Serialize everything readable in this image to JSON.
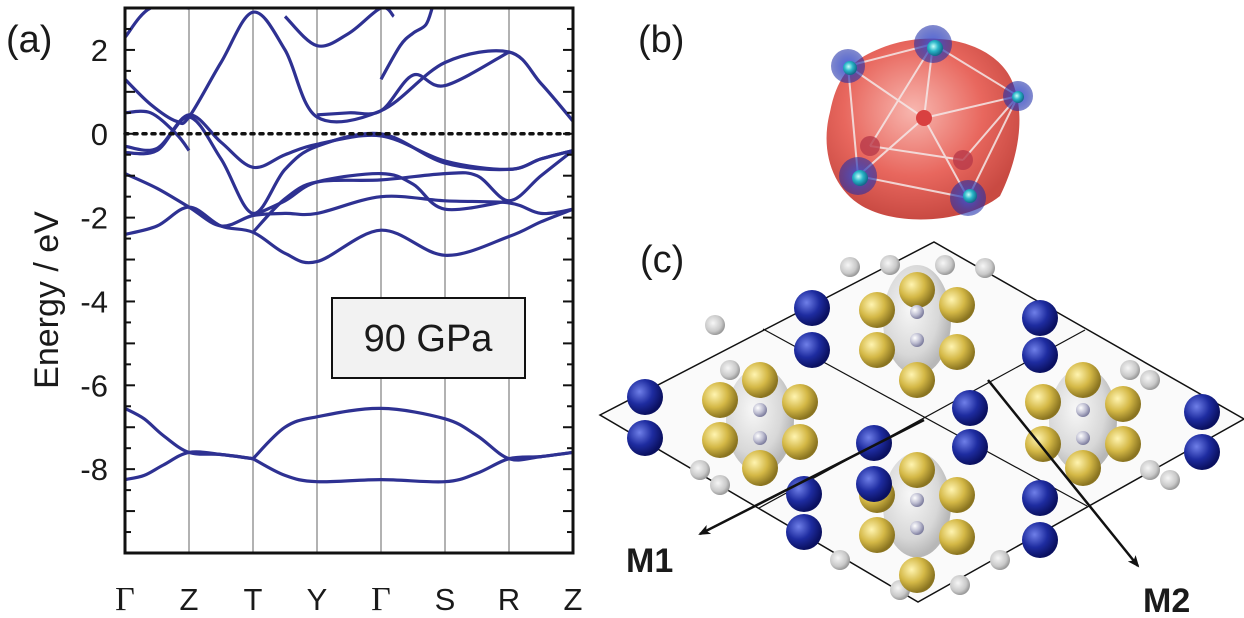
{
  "panels": {
    "a": "(a)",
    "b": "(b)",
    "c": "(c)"
  },
  "chart_data": {
    "type": "line",
    "title": "",
    "xlabel": "",
    "ylabel": "Energy / eV",
    "annotation": "90 GPa",
    "x_ticks": [
      "Γ",
      "Z",
      "T",
      "Y",
      "Γ",
      "S",
      "R",
      "Z"
    ],
    "x_range": [
      0,
      7
    ],
    "ylim": [
      -10,
      3
    ],
    "y_ticks": [
      2,
      0,
      -2,
      -4,
      -6,
      -8
    ],
    "fermi_level": 0,
    "grid_vertical": true,
    "color": "#2e3192",
    "bands": [
      {
        "x": [
          0,
          0.3,
          0.6,
          1,
          1.5,
          2
        ],
        "y": [
          -8.25,
          -8.15,
          -7.9,
          -7.6,
          -7.65,
          -7.75
        ]
      },
      {
        "x": [
          0,
          0.3,
          0.6,
          1,
          1.5,
          2
        ],
        "y": [
          -6.55,
          -6.8,
          -7.2,
          -7.6,
          -7.65,
          -7.75
        ]
      },
      {
        "x": [
          2,
          2.5,
          3,
          4,
          5,
          5.5,
          6,
          6.5,
          7
        ],
        "y": [
          -7.75,
          -7.0,
          -6.75,
          -6.55,
          -6.8,
          -7.2,
          -7.75,
          -7.7,
          -7.6
        ]
      },
      {
        "x": [
          2,
          2.5,
          3,
          4,
          5,
          5.5,
          6,
          6.5,
          7
        ],
        "y": [
          -7.75,
          -8.15,
          -8.3,
          -8.25,
          -8.3,
          -8.1,
          -7.75,
          -7.7,
          -7.6
        ]
      },
      {
        "x": [
          0,
          0.5,
          1,
          1.5,
          2,
          2.5,
          3,
          4,
          5,
          6,
          6.5,
          7
        ],
        "y": [
          -2.4,
          -2.2,
          -1.75,
          -2.2,
          -2.35,
          -2.85,
          -3.05,
          -2.3,
          -2.9,
          -2.45,
          -2.1,
          -1.8
        ]
      },
      {
        "x": [
          0,
          0.5,
          1,
          1.5,
          2,
          2.5,
          3,
          4,
          5,
          6,
          6.5,
          7
        ],
        "y": [
          -0.95,
          -1.3,
          -1.75,
          -2.2,
          -1.95,
          -1.9,
          -1.9,
          -1.5,
          -1.6,
          -1.65,
          -1.9,
          -1.8
        ]
      },
      {
        "x": [
          2,
          2.5,
          3,
          4,
          4.5,
          5,
          6
        ],
        "y": [
          -1.95,
          -1.6,
          -1.15,
          -0.95,
          -1.2,
          -1.8,
          -1.6
        ]
      },
      {
        "x": [
          2,
          2.5,
          3,
          4,
          5,
          5.5,
          6,
          6.5,
          7
        ],
        "y": [
          -2.35,
          -1.55,
          -1.15,
          -1.1,
          -0.95,
          -1.0,
          -1.6,
          -1.0,
          -0.4
        ]
      },
      {
        "x": [
          0,
          0.5,
          1,
          1.5,
          2,
          2.5,
          3,
          4,
          5,
          6,
          6.5,
          7
        ],
        "y": [
          -0.45,
          -0.4,
          0.4,
          -0.6,
          -1.9,
          -0.85,
          -0.3,
          0.0,
          -0.7,
          -0.85,
          -0.6,
          -0.4
        ]
      },
      {
        "x": [
          0,
          0.5,
          1,
          1.5,
          2,
          2.5,
          3,
          4,
          5,
          6,
          6.5,
          7
        ],
        "y": [
          -0.3,
          -0.35,
          0.45,
          -0.2,
          -0.8,
          -0.5,
          -0.25,
          -0.05,
          -0.65,
          -0.85,
          -0.6,
          -0.4
        ]
      },
      {
        "x": [
          0,
          0.4,
          0.8,
          1
        ],
        "y": [
          0.5,
          0.5,
          0.0,
          -0.4
        ]
      },
      {
        "x": [
          0,
          0.4,
          0.8,
          1,
          1.5,
          2,
          2.5,
          3,
          4,
          5,
          6,
          6.5,
          7
        ],
        "y": [
          1.3,
          0.7,
          0.3,
          0.4,
          1.7,
          2.9,
          2.0,
          0.4,
          0.55,
          1.7,
          1.95,
          1.2,
          0.3
        ]
      },
      {
        "x": [
          0,
          0.4,
          1
        ],
        "y": [
          2.3,
          3.0,
          3.0
        ]
      },
      {
        "x": [
          3,
          3.5,
          4,
          4.5,
          5,
          6
        ],
        "y": [
          0.45,
          0.5,
          0.55,
          1.4,
          1.15,
          1.95
        ]
      },
      {
        "x": [
          2.5,
          3,
          3.5,
          4,
          4.2
        ],
        "y": [
          2.8,
          2.1,
          2.4,
          3.0,
          2.8
        ]
      },
      {
        "x": [
          4,
          4.3,
          4.5,
          4.7,
          4.8
        ],
        "y": [
          1.3,
          2.1,
          2.4,
          2.6,
          3.0
        ]
      }
    ]
  },
  "labels": {
    "m1": "M1",
    "m2": "M2"
  }
}
